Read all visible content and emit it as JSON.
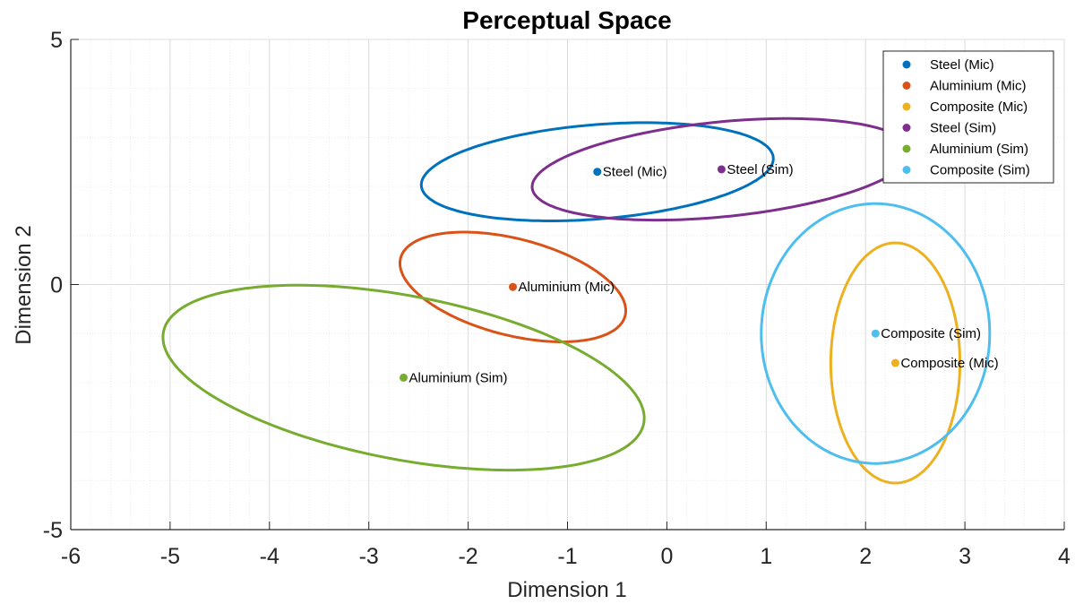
{
  "chart_data": {
    "type": "scatter",
    "title": "Perceptual Space",
    "xlabel": "Dimension 1",
    "ylabel": "Dimension 2",
    "xlim": [
      -6,
      4
    ],
    "ylim": [
      -5,
      5
    ],
    "xticks": [
      -6,
      -5,
      -4,
      -3,
      -2,
      -1,
      0,
      1,
      2,
      3,
      4
    ],
    "yticks": [
      -5,
      0,
      5
    ],
    "xtick_labels": [
      "-6",
      "-5",
      "-4",
      "-3",
      "-2",
      "-1",
      "0",
      "1",
      "2",
      "3",
      "4"
    ],
    "ytick_labels": [
      "-5",
      "0",
      "5"
    ],
    "grid": "major and minor",
    "legend_position": "top-right",
    "series": [
      {
        "name": "Steel (Mic)",
        "label": "Steel (Mic)",
        "color": "#0072BD",
        "x": -0.7,
        "y": 2.3,
        "ellipse": {
          "cx": -0.7,
          "cy": 2.3,
          "rx": 1.8,
          "ry": 0.95,
          "angle_deg": 12
        }
      },
      {
        "name": "Aluminium (Mic)",
        "label": "Aluminium (Mic)",
        "color": "#D95319",
        "x": -1.55,
        "y": -0.05,
        "ellipse": {
          "cx": -1.55,
          "cy": -0.05,
          "rx": 1.35,
          "ry": 0.85,
          "angle_deg": -44
        }
      },
      {
        "name": "Composite (Mic)",
        "label": "Composite (Mic)",
        "color": "#EDB120",
        "x": 2.3,
        "y": -1.6,
        "ellipse": {
          "cx": 2.3,
          "cy": -1.6,
          "rx": 0.65,
          "ry": 2.45,
          "angle_deg": 0
        }
      },
      {
        "name": "Steel (Sim)",
        "label": "Steel (Sim)",
        "color": "#7E2F8E",
        "x": 0.55,
        "y": 2.35,
        "ellipse": {
          "cx": 0.55,
          "cy": 2.35,
          "rx": 1.95,
          "ry": 0.95,
          "angle_deg": 14
        }
      },
      {
        "name": "Aluminium (Sim)",
        "label": "Aluminium (Sim)",
        "color": "#77AC30",
        "x": -2.65,
        "y": -1.9,
        "ellipse": {
          "cx": -2.65,
          "cy": -1.9,
          "rx": 2.65,
          "ry": 1.55,
          "angle_deg": -30
        }
      },
      {
        "name": "Composite (Sim)",
        "label": "Composite (Sim)",
        "color": "#4DBEEE",
        "x": 2.1,
        "y": -1.0,
        "ellipse": {
          "cx": 2.1,
          "cy": -1.0,
          "rx": 1.15,
          "ry": 2.65,
          "angle_deg": 0
        }
      }
    ]
  }
}
